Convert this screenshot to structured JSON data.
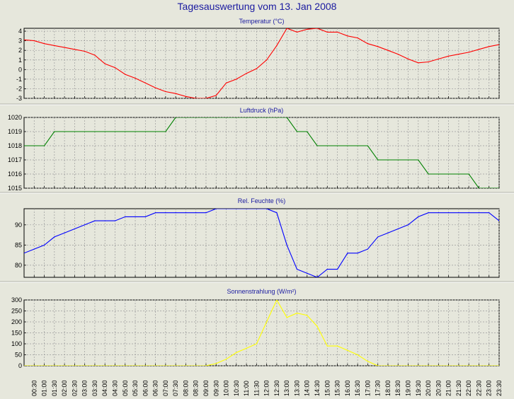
{
  "page": {
    "title": "Tagesauswertung vom 13. Jan 2008"
  },
  "chart_data": [
    {
      "type": "line",
      "title": "Temperatur (°C)",
      "color": "#ff0000",
      "ylim": [
        -3,
        4.3
      ],
      "yticks": [
        4,
        3,
        2,
        1,
        0,
        -1,
        -2,
        -3
      ],
      "x": [
        "00:00",
        "00:30",
        "01:00",
        "01:30",
        "02:00",
        "02:30",
        "03:00",
        "03:30",
        "04:00",
        "04:30",
        "05:00",
        "05:30",
        "06:00",
        "06:30",
        "07:00",
        "07:30",
        "08:00",
        "08:30",
        "09:00",
        "09:30",
        "10:00",
        "10:30",
        "11:00",
        "11:30",
        "12:00",
        "12:30",
        "13:00",
        "13:30",
        "14:00",
        "14:30",
        "15:00",
        "15:30",
        "16:00",
        "16:30",
        "17:00",
        "17:30",
        "18:00",
        "18:30",
        "19:00",
        "19:30",
        "20:00",
        "20:30",
        "21:00",
        "21:30",
        "22:00",
        "22:30",
        "23:00",
        "23:30"
      ],
      "values": [
        3.1,
        3.0,
        2.7,
        2.5,
        2.3,
        2.1,
        1.9,
        1.5,
        0.6,
        0.2,
        -0.5,
        -0.9,
        -1.4,
        -1.9,
        -2.3,
        -2.5,
        -2.8,
        -3.0,
        -3.0,
        -2.7,
        -1.4,
        -1.0,
        -0.4,
        0.1,
        1.0,
        2.5,
        4.3,
        3.9,
        4.2,
        4.3,
        3.9,
        3.9,
        3.5,
        3.3,
        2.7,
        2.4,
        2.0,
        1.6,
        1.1,
        0.7,
        0.8,
        1.1,
        1.4,
        1.6,
        1.8,
        2.1,
        2.4,
        2.6
      ]
    },
    {
      "type": "line",
      "title": "Luftdruck (hPa)",
      "color": "#008000",
      "ylim": [
        1015,
        1020
      ],
      "yticks": [
        1020,
        1019,
        1018,
        1017,
        1016,
        1015
      ],
      "x": [
        "00:00",
        "00:30",
        "01:00",
        "01:30",
        "02:00",
        "02:30",
        "03:00",
        "03:30",
        "04:00",
        "04:30",
        "05:00",
        "05:30",
        "06:00",
        "06:30",
        "07:00",
        "07:30",
        "08:00",
        "08:30",
        "09:00",
        "09:30",
        "10:00",
        "10:30",
        "11:00",
        "11:30",
        "12:00",
        "12:30",
        "13:00",
        "13:30",
        "14:00",
        "14:30",
        "15:00",
        "15:30",
        "16:00",
        "16:30",
        "17:00",
        "17:30",
        "18:00",
        "18:30",
        "19:00",
        "19:30",
        "20:00",
        "20:30",
        "21:00",
        "21:30",
        "22:00",
        "22:30",
        "23:00",
        "23:30"
      ],
      "values": [
        1018,
        1018,
        1018,
        1019,
        1019,
        1019,
        1019,
        1019,
        1019,
        1019,
        1019,
        1019,
        1019,
        1019,
        1019,
        1020,
        1020,
        1020,
        1020,
        1020,
        1020,
        1020,
        1020,
        1020,
        1020,
        1020,
        1020,
        1019,
        1019,
        1018,
        1018,
        1018,
        1018,
        1018,
        1018,
        1017,
        1017,
        1017,
        1017,
        1017,
        1016,
        1016,
        1016,
        1016,
        1016,
        1015,
        1015,
        1015
      ]
    },
    {
      "type": "line",
      "title": "Rel. Feuchte (%)",
      "color": "#0000ff",
      "ylim": [
        77,
        94
      ],
      "yticks": [
        90,
        85,
        80
      ],
      "x": [
        "00:00",
        "00:30",
        "01:00",
        "01:30",
        "02:00",
        "02:30",
        "03:00",
        "03:30",
        "04:00",
        "04:30",
        "05:00",
        "05:30",
        "06:00",
        "06:30",
        "07:00",
        "07:30",
        "08:00",
        "08:30",
        "09:00",
        "09:30",
        "10:00",
        "10:30",
        "11:00",
        "11:30",
        "12:00",
        "12:30",
        "13:00",
        "13:30",
        "14:00",
        "14:30",
        "15:00",
        "15:30",
        "16:00",
        "16:30",
        "17:00",
        "17:30",
        "18:00",
        "18:30",
        "19:00",
        "19:30",
        "20:00",
        "20:30",
        "21:00",
        "21:30",
        "22:00",
        "22:30",
        "23:00",
        "23:30"
      ],
      "values": [
        83,
        84,
        85,
        87,
        88,
        89,
        90,
        91,
        91,
        91,
        92,
        92,
        92,
        93,
        93,
        93,
        93,
        93,
        93,
        94,
        94,
        94,
        94,
        94,
        94,
        93,
        85,
        79,
        78,
        77,
        79,
        79,
        83,
        83,
        84,
        87,
        88,
        89,
        90,
        92,
        93,
        93,
        93,
        93,
        93,
        93,
        93,
        91
      ]
    },
    {
      "type": "area",
      "title": "Sonnenstrahlung (W/m²)",
      "color": "#ffff00",
      "ylim": [
        0,
        300
      ],
      "yticks": [
        300,
        250,
        200,
        150,
        100,
        50,
        0
      ],
      "x": [
        "00:00",
        "00:30",
        "01:00",
        "01:30",
        "02:00",
        "02:30",
        "03:00",
        "03:30",
        "04:00",
        "04:30",
        "05:00",
        "05:30",
        "06:00",
        "06:30",
        "07:00",
        "07:30",
        "08:00",
        "08:30",
        "09:00",
        "09:30",
        "10:00",
        "10:30",
        "11:00",
        "11:30",
        "12:00",
        "12:30",
        "13:00",
        "13:30",
        "14:00",
        "14:30",
        "15:00",
        "15:30",
        "16:00",
        "16:30",
        "17:00",
        "17:30",
        "18:00",
        "18:30",
        "19:00",
        "19:30",
        "20:00",
        "20:30",
        "21:00",
        "21:30",
        "22:00",
        "22:30",
        "23:00",
        "23:30"
      ],
      "values": [
        0,
        0,
        0,
        0,
        0,
        0,
        0,
        0,
        0,
        0,
        0,
        0,
        0,
        0,
        0,
        0,
        0,
        0,
        0,
        10,
        30,
        60,
        80,
        100,
        200,
        300,
        220,
        240,
        230,
        180,
        90,
        90,
        70,
        50,
        20,
        0,
        0,
        0,
        0,
        0,
        0,
        0,
        0,
        0,
        0,
        0,
        0,
        0
      ]
    }
  ],
  "x_axis": {
    "tick_labels": [
      "00:30",
      "01:00",
      "01:30",
      "02:00",
      "02:30",
      "03:00",
      "03:30",
      "04:00",
      "04:30",
      "05:00",
      "05:30",
      "06:00",
      "06:30",
      "07:00",
      "07:30",
      "08:00",
      "08:30",
      "09:00",
      "09:30",
      "10:00",
      "10:30",
      "11:00",
      "11:30",
      "12:00",
      "12:30",
      "13:00",
      "13:30",
      "14:00",
      "14:30",
      "15:00",
      "15:30",
      "16:00",
      "16:30",
      "17:00",
      "17:30",
      "18:00",
      "18:30",
      "19:00",
      "19:30",
      "20:00",
      "20:30",
      "21:00",
      "21:30",
      "22:00",
      "22:30",
      "23:00",
      "23:30"
    ]
  },
  "style": {
    "background": "#e6e7dc",
    "plot_background": "#e6e7dc",
    "grid": "dashed"
  }
}
